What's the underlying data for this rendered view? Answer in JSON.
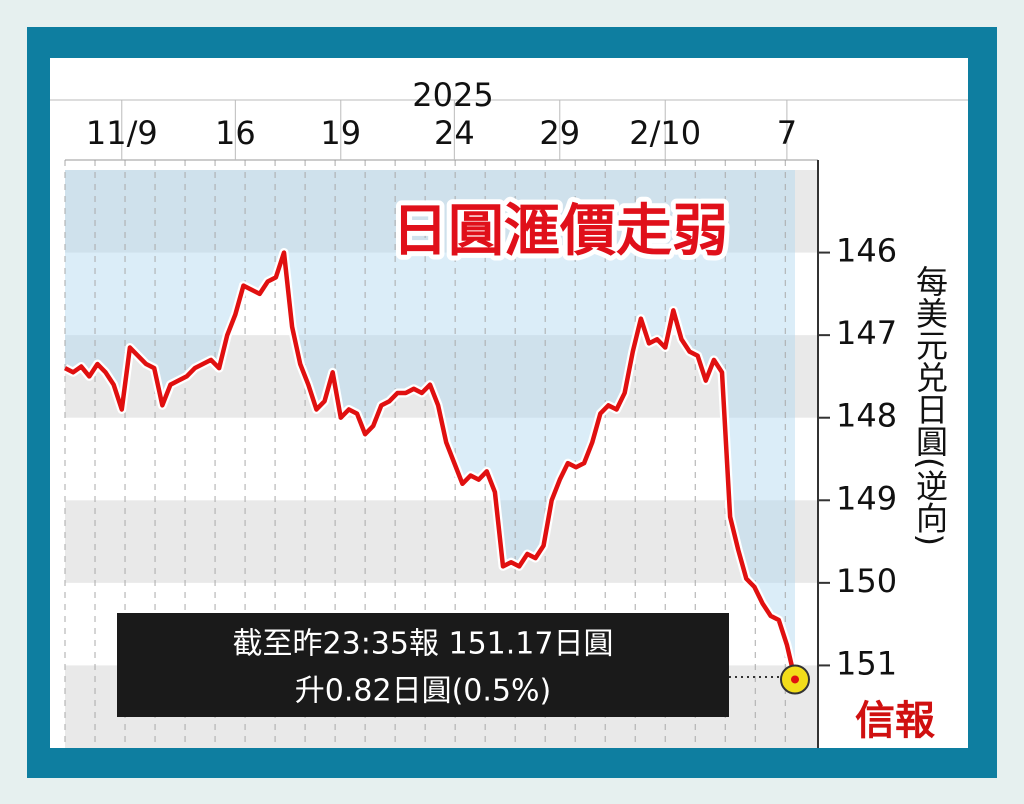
{
  "chart_data": {
    "type": "line",
    "title": "日圓滙價走弱",
    "year_label": "2025",
    "y_label": "每美元兑日圓(逆向)",
    "annotation": [
      "截至昨23:35報 151.17日圓",
      "升0.82日圓(0.5%)"
    ],
    "source": "信報",
    "color": "#e01010",
    "values": [
      147.4,
      147.45,
      147.38,
      147.5,
      147.35,
      147.45,
      147.6,
      147.9,
      147.15,
      147.25,
      147.35,
      147.4,
      147.85,
      147.6,
      147.55,
      147.5,
      147.4,
      147.35,
      147.3,
      147.4,
      147.0,
      146.75,
      146.4,
      146.45,
      146.5,
      146.35,
      146.3,
      146.0,
      146.9,
      147.35,
      147.6,
      147.9,
      147.8,
      147.45,
      148.0,
      147.9,
      147.95,
      148.2,
      148.1,
      147.85,
      147.8,
      147.7,
      147.7,
      147.65,
      147.7,
      147.6,
      147.85,
      148.3,
      148.55,
      148.8,
      148.7,
      148.75,
      148.65,
      148.9,
      149.8,
      149.75,
      149.8,
      149.65,
      149.7,
      149.55,
      149.0,
      148.75,
      148.55,
      148.6,
      148.55,
      148.3,
      147.95,
      147.85,
      147.9,
      147.7,
      147.2,
      146.8,
      147.1,
      147.05,
      147.15,
      146.7,
      147.05,
      147.2,
      147.25,
      147.55,
      147.3,
      147.45,
      149.2,
      149.6,
      149.95,
      150.05,
      150.25,
      150.4,
      150.45,
      150.75,
      151.17
    ],
    "xticks": [
      {
        "value": 7,
        "label": "11/9"
      },
      {
        "value": 21,
        "label": "16"
      },
      {
        "value": 34,
        "label": "19"
      },
      {
        "value": 48,
        "label": "24"
      },
      {
        "value": 61,
        "label": "29"
      },
      {
        "value": 74,
        "label": "2/10"
      },
      {
        "value": 89,
        "label": "7"
      }
    ],
    "ylim": [
      145,
      152
    ],
    "yticks": [
      146,
      147,
      148,
      149,
      150,
      151
    ],
    "y_inverted": true,
    "grid": true
  }
}
